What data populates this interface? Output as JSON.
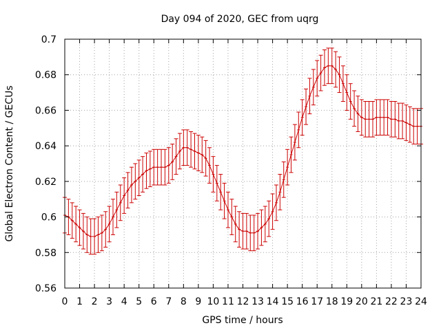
{
  "chart_data": {
    "type": "line",
    "title": "Day 094 of 2020, GEC from uqrg",
    "xlabel": "GPS time / hours",
    "ylabel": "Global Electron Content / GECUs",
    "xlim": [
      0,
      24
    ],
    "ylim": [
      0.56,
      0.7
    ],
    "xticks": [
      0,
      1,
      2,
      3,
      4,
      5,
      6,
      7,
      8,
      9,
      10,
      11,
      12,
      13,
      14,
      15,
      16,
      17,
      18,
      19,
      20,
      21,
      22,
      23,
      24
    ],
    "xtick_labels": [
      "0",
      "1",
      "2",
      "3",
      "4",
      "5",
      "6",
      "7",
      "8",
      "9",
      "10",
      "11",
      "12",
      "13",
      "14",
      "15",
      "16",
      "17",
      "18",
      "19",
      "20",
      "21",
      "22",
      "23",
      "24"
    ],
    "yticks": [
      0.56,
      0.58,
      0.6,
      0.62,
      0.64,
      0.66,
      0.68,
      0.7
    ],
    "ytick_labels": [
      "0.56",
      "0.58",
      "0.6",
      "0.62",
      "0.64",
      "0.66",
      "0.68",
      "0.7"
    ],
    "grid": true,
    "color": "#cc0000",
    "error": 0.01,
    "x": [
      0,
      0.25,
      0.5,
      0.75,
      1,
      1.25,
      1.5,
      1.75,
      2,
      2.25,
      2.5,
      2.75,
      3,
      3.25,
      3.5,
      3.75,
      4,
      4.25,
      4.5,
      4.75,
      5,
      5.25,
      5.5,
      5.75,
      6,
      6.25,
      6.5,
      6.75,
      7,
      7.25,
      7.5,
      7.75,
      8,
      8.25,
      8.5,
      8.75,
      9,
      9.25,
      9.5,
      9.75,
      10,
      10.25,
      10.5,
      10.75,
      11,
      11.25,
      11.5,
      11.75,
      12,
      12.25,
      12.5,
      12.75,
      13,
      13.25,
      13.5,
      13.75,
      14,
      14.25,
      14.5,
      14.75,
      15,
      15.25,
      15.5,
      15.75,
      16,
      16.25,
      16.5,
      16.75,
      17,
      17.25,
      17.5,
      17.75,
      18,
      18.25,
      18.5,
      18.75,
      19,
      19.25,
      19.5,
      19.75,
      20,
      20.25,
      20.5,
      20.75,
      21,
      21.25,
      21.5,
      21.75,
      22,
      22.25,
      22.5,
      22.75,
      23,
      23.25,
      23.5,
      23.75,
      24
    ],
    "y": [
      0.601,
      0.6,
      0.598,
      0.596,
      0.594,
      0.592,
      0.59,
      0.589,
      0.589,
      0.59,
      0.591,
      0.593,
      0.596,
      0.6,
      0.604,
      0.608,
      0.612,
      0.615,
      0.618,
      0.62,
      0.622,
      0.624,
      0.626,
      0.627,
      0.628,
      0.628,
      0.628,
      0.628,
      0.629,
      0.631,
      0.634,
      0.637,
      0.639,
      0.639,
      0.638,
      0.637,
      0.636,
      0.635,
      0.633,
      0.629,
      0.624,
      0.619,
      0.614,
      0.609,
      0.604,
      0.6,
      0.596,
      0.593,
      0.592,
      0.592,
      0.591,
      0.591,
      0.592,
      0.594,
      0.596,
      0.599,
      0.603,
      0.608,
      0.614,
      0.621,
      0.628,
      0.635,
      0.642,
      0.649,
      0.656,
      0.662,
      0.668,
      0.673,
      0.678,
      0.681,
      0.684,
      0.685,
      0.685,
      0.683,
      0.68,
      0.675,
      0.67,
      0.665,
      0.661,
      0.658,
      0.656,
      0.655,
      0.655,
      0.655,
      0.656,
      0.656,
      0.656,
      0.656,
      0.655,
      0.655,
      0.654,
      0.654,
      0.653,
      0.652,
      0.651,
      0.651,
      0.651
    ]
  }
}
